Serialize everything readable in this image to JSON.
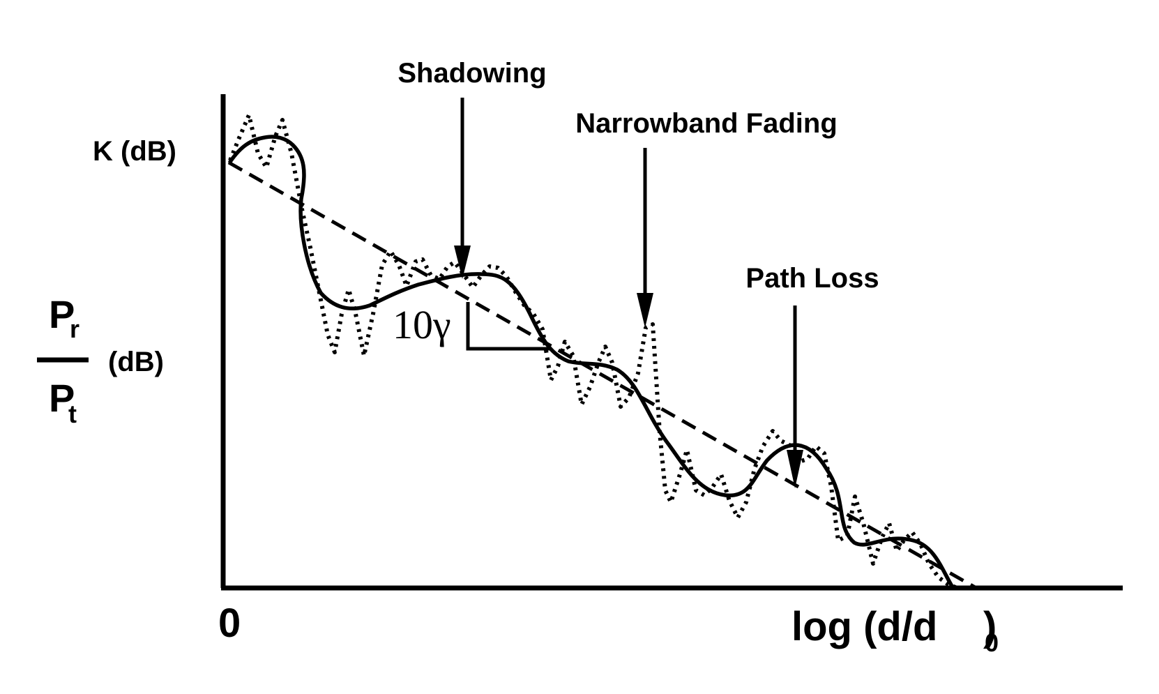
{
  "labels": {
    "shadowing": "Shadowing",
    "narrowband_fading": "Narrowband Fading",
    "path_loss": "Path Loss",
    "k_db": "K (dB)",
    "slope": "10γ",
    "y_num_main": "P",
    "y_num_sub": "r",
    "y_den_main": "P",
    "y_den_sub": "t",
    "y_unit": "(dB)",
    "x_origin": "0",
    "x_label": "log (d/d",
    "x_label_sub": "0",
    "x_label_close": ")"
  },
  "legend_styles": {
    "path_loss": "dashed",
    "shadowing": "solid",
    "narrowband_fading": "dotted"
  }
}
